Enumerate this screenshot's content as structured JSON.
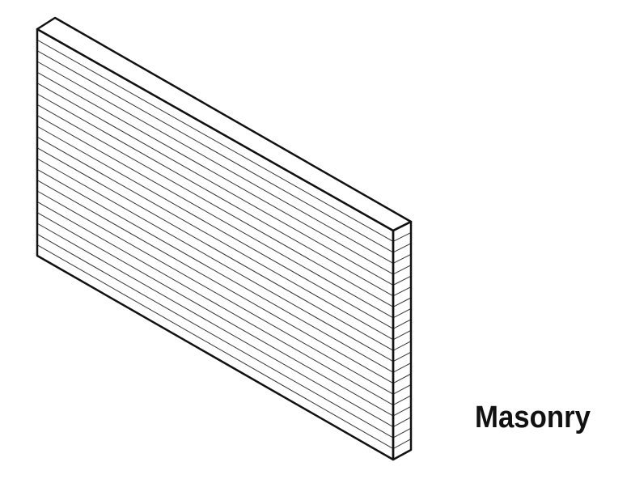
{
  "label": "Masonry"
}
